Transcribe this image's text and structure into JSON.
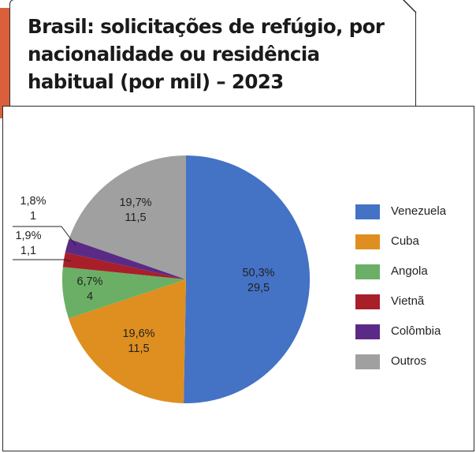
{
  "title": "Brasil: solicitações de refúgio, por nacionalidade ou residência habitual (por mil) – 2023",
  "colors": {
    "accent": "#d9603a",
    "Venezuela": "#4472c4",
    "Cuba": "#df8f1f",
    "Angola": "#6aaf65",
    "Vietnã": "#a81f2a",
    "Colômbia": "#5b2a86",
    "Outros": "#a0a0a0"
  },
  "chart_data": {
    "type": "pie",
    "title": "Brasil: solicitações de refúgio, por nacionalidade ou residência habitual (por mil) – 2023",
    "legend_position": "right",
    "slices": [
      {
        "name": "Venezuela",
        "percent": 50.3,
        "value": 29.5,
        "percent_label": "50,3%",
        "value_label": "29,5",
        "color": "#4472c4"
      },
      {
        "name": "Cuba",
        "percent": 19.6,
        "value": 11.5,
        "percent_label": "19,6%",
        "value_label": "11,5",
        "color": "#df8f1f"
      },
      {
        "name": "Angola",
        "percent": 6.7,
        "value": 4,
        "percent_label": "6,7%",
        "value_label": "4",
        "color": "#6aaf65"
      },
      {
        "name": "Vietnã",
        "percent": 1.9,
        "value": 1.1,
        "percent_label": "1,9%",
        "value_label": "1,1",
        "color": "#a81f2a"
      },
      {
        "name": "Colômbia",
        "percent": 1.8,
        "value": 1,
        "percent_label": "1,8%",
        "value_label": "1",
        "color": "#5b2a86"
      },
      {
        "name": "Outros",
        "percent": 19.7,
        "value": 11.5,
        "percent_label": "19,7%",
        "value_label": "11,5",
        "color": "#a0a0a0"
      }
    ]
  },
  "legend": [
    {
      "label": "Venezuela",
      "color": "#4472c4"
    },
    {
      "label": "Cuba",
      "color": "#df8f1f"
    },
    {
      "label": "Angola",
      "color": "#6aaf65"
    },
    {
      "label": "Vietnã",
      "color": "#a81f2a"
    },
    {
      "label": "Colômbia",
      "color": "#5b2a86"
    },
    {
      "label": "Outros",
      "color": "#a0a0a0"
    }
  ]
}
